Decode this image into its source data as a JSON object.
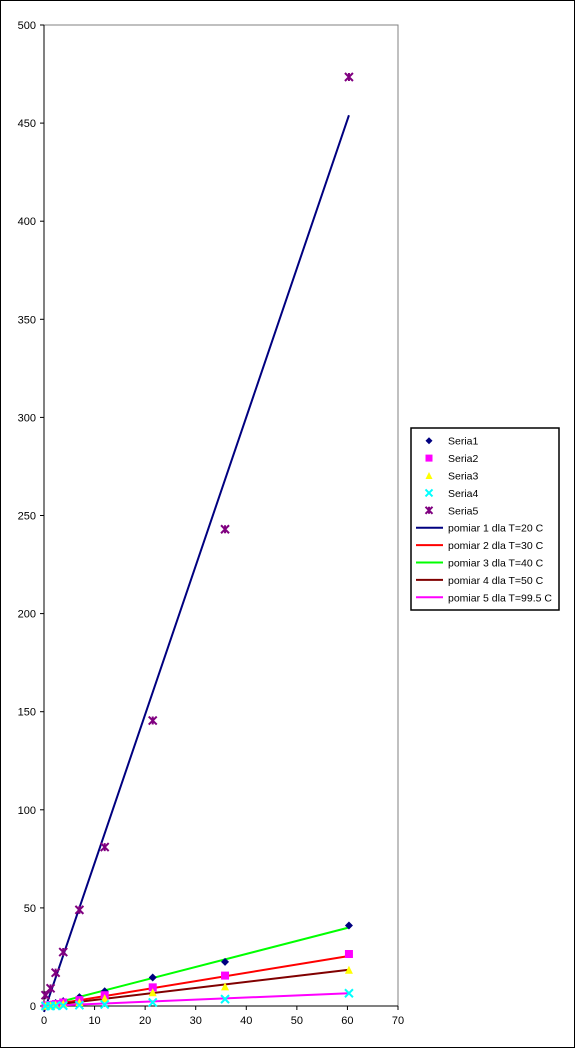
{
  "chart_data": {
    "type": "scatter",
    "title": "",
    "xlabel": "",
    "ylabel": "",
    "xlim": [
      0,
      70
    ],
    "ylim": [
      0,
      500
    ],
    "xticks": [
      0,
      10,
      20,
      30,
      40,
      50,
      60,
      70
    ],
    "yticks": [
      0,
      50,
      100,
      150,
      200,
      250,
      300,
      350,
      400,
      450,
      500
    ],
    "grid": false,
    "legend_position": "right",
    "series": [
      {
        "name": "Seria1",
        "marker": "diamond",
        "color": "#000080",
        "x": [
          0.3,
          1.3,
          2.3,
          3.8,
          7.0,
          12.0,
          21.5,
          35.8,
          60.3
        ],
        "y": [
          0.3,
          0.7,
          1.5,
          2.5,
          4.5,
          7.5,
          14.5,
          22.5,
          41.0
        ]
      },
      {
        "name": "Seria2",
        "marker": "square",
        "color": "#FF00FF",
        "x": [
          0.3,
          1.3,
          2.3,
          3.8,
          7.0,
          12.0,
          21.5,
          35.8,
          60.3
        ],
        "y": [
          0.2,
          0.5,
          1.0,
          1.8,
          3.0,
          5.5,
          9.5,
          15.5,
          26.5
        ]
      },
      {
        "name": "Seria3",
        "marker": "triangle",
        "color": "#FFFF00",
        "x": [
          0.3,
          1.3,
          2.3,
          3.8,
          7.0,
          12.0,
          21.5,
          35.8,
          60.3
        ],
        "y": [
          0.1,
          0.3,
          0.7,
          1.2,
          2.0,
          4.0,
          7.0,
          10.0,
          18.5
        ]
      },
      {
        "name": "Seria4",
        "marker": "x",
        "color": "#00FFFF",
        "x": [
          0.3,
          1.3,
          2.3,
          3.8,
          7.0,
          12.0,
          21.5,
          35.8,
          60.3
        ],
        "y": [
          0.0,
          0.0,
          0.1,
          0.2,
          0.4,
          0.8,
          1.8,
          3.5,
          6.5
        ]
      },
      {
        "name": "Seria5",
        "marker": "star",
        "color": "#800080",
        "x": [
          0.3,
          1.3,
          2.3,
          3.8,
          7.0,
          12.0,
          21.5,
          35.8,
          60.3
        ],
        "y": [
          5.5,
          9.0,
          17.0,
          27.5,
          49.0,
          81.0,
          145.5,
          243.0,
          473.5
        ]
      }
    ],
    "trendlines": [
      {
        "name": "pomiar 1 dla T=20 C",
        "color": "#000080",
        "x": [
          0,
          60.3
        ],
        "y": [
          -3,
          454
        ]
      },
      {
        "name": "pomiar 2 dla T=30 C",
        "color": "#FF0000",
        "x": [
          0,
          60.3
        ],
        "y": [
          0,
          25.5
        ]
      },
      {
        "name": "pomiar 3 dla T=40 C",
        "color": "#00FF00",
        "x": [
          0,
          60.3
        ],
        "y": [
          0,
          40
        ]
      },
      {
        "name": "pomiar 4 dla T=50 C",
        "color": "#800000",
        "x": [
          0,
          60.3
        ],
        "y": [
          0,
          18.5
        ]
      },
      {
        "name": "pomiar 5 dla T=99.5 C",
        "color": "#FF00FF",
        "x": [
          0,
          60.3
        ],
        "y": [
          0,
          6.5
        ]
      }
    ]
  }
}
